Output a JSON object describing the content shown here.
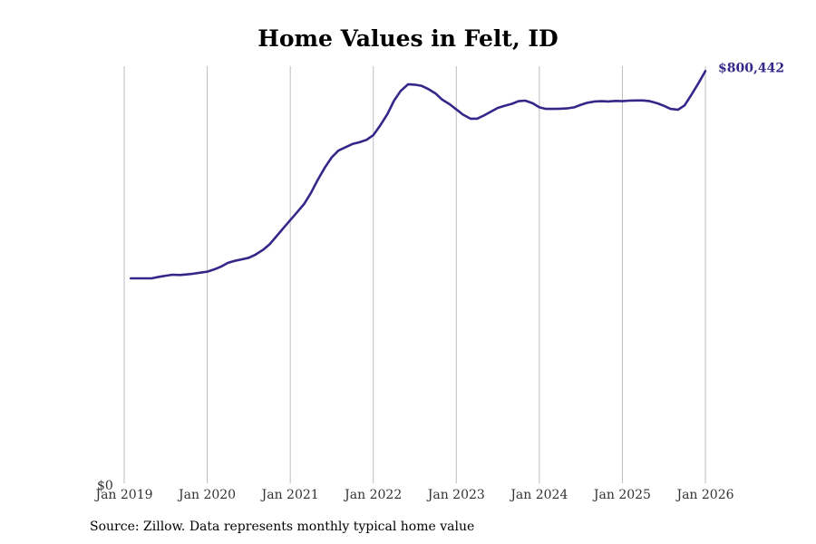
{
  "chart_data": {
    "type": "line",
    "title": "Home Values in Felt, ID",
    "xlabel": "",
    "ylabel": "",
    "y_tick_labels": [
      "$0"
    ],
    "ylim": [
      0,
      810000
    ],
    "x_ticks": [
      {
        "label": "Jan 2019",
        "value": 2019.0
      },
      {
        "label": "Jan 2020",
        "value": 2020.0
      },
      {
        "label": "Jan 2021",
        "value": 2021.0
      },
      {
        "label": "Jan 2022",
        "value": 2022.0
      },
      {
        "label": "Jan 2023",
        "value": 2023.0
      },
      {
        "label": "Jan 2024",
        "value": 2024.0
      },
      {
        "label": "Jan 2025",
        "value": 2025.0
      },
      {
        "label": "Jan 2026",
        "value": 2026.0
      }
    ],
    "xlim": [
      2019.0,
      2026.0
    ],
    "grid": "vertical",
    "end_label": "$800,442",
    "series": [
      {
        "name": "Typical home value",
        "color": "#33288a",
        "points": [
          [
            2019.08,
            398000
          ],
          [
            2019.17,
            398000
          ],
          [
            2019.25,
            398000
          ],
          [
            2019.33,
            398000
          ],
          [
            2019.42,
            401000
          ],
          [
            2019.5,
            403000
          ],
          [
            2019.58,
            405000
          ],
          [
            2019.67,
            404500
          ],
          [
            2019.75,
            405500
          ],
          [
            2019.83,
            407000
          ],
          [
            2019.92,
            409000
          ],
          [
            2020.0,
            411000
          ],
          [
            2020.08,
            415000
          ],
          [
            2020.17,
            421000
          ],
          [
            2020.25,
            428000
          ],
          [
            2020.33,
            432000
          ],
          [
            2020.42,
            435000
          ],
          [
            2020.5,
            438000
          ],
          [
            2020.58,
            444000
          ],
          [
            2020.67,
            453000
          ],
          [
            2020.75,
            464000
          ],
          [
            2020.83,
            479000
          ],
          [
            2020.92,
            496000
          ],
          [
            2021.0,
            511000
          ],
          [
            2021.08,
            526000
          ],
          [
            2021.17,
            543000
          ],
          [
            2021.25,
            564000
          ],
          [
            2021.33,
            589000
          ],
          [
            2021.42,
            614000
          ],
          [
            2021.5,
            633000
          ],
          [
            2021.58,
            646000
          ],
          [
            2021.67,
            653000
          ],
          [
            2021.75,
            659000
          ],
          [
            2021.83,
            662000
          ],
          [
            2021.92,
            667000
          ],
          [
            2022.0,
            676000
          ],
          [
            2022.08,
            694000
          ],
          [
            2022.17,
            717000
          ],
          [
            2022.25,
            743000
          ],
          [
            2022.33,
            762000
          ],
          [
            2022.42,
            775000
          ],
          [
            2022.5,
            774000
          ],
          [
            2022.58,
            772000
          ],
          [
            2022.67,
            765000
          ],
          [
            2022.75,
            757000
          ],
          [
            2022.83,
            745000
          ],
          [
            2022.92,
            736000
          ],
          [
            2023.0,
            726000
          ],
          [
            2023.08,
            716000
          ],
          [
            2023.17,
            708000
          ],
          [
            2023.25,
            708000
          ],
          [
            2023.33,
            714000
          ],
          [
            2023.42,
            722000
          ],
          [
            2023.5,
            729000
          ],
          [
            2023.58,
            733000
          ],
          [
            2023.67,
            737000
          ],
          [
            2023.75,
            742000
          ],
          [
            2023.83,
            743000
          ],
          [
            2023.92,
            738000
          ],
          [
            2024.0,
            730000
          ],
          [
            2024.08,
            727000
          ],
          [
            2024.17,
            727000
          ],
          [
            2024.25,
            727500
          ],
          [
            2024.33,
            728000
          ],
          [
            2024.42,
            730000
          ],
          [
            2024.5,
            735000
          ],
          [
            2024.58,
            739000
          ],
          [
            2024.67,
            741500
          ],
          [
            2024.75,
            742000
          ],
          [
            2024.83,
            741500
          ],
          [
            2024.92,
            742500
          ],
          [
            2025.0,
            742000
          ],
          [
            2025.08,
            743000
          ],
          [
            2025.17,
            743500
          ],
          [
            2025.25,
            743500
          ],
          [
            2025.33,
            742000
          ],
          [
            2025.42,
            738000
          ],
          [
            2025.5,
            733000
          ],
          [
            2025.58,
            727000
          ],
          [
            2025.67,
            725500
          ],
          [
            2025.75,
            734000
          ],
          [
            2025.83,
            754000
          ],
          [
            2025.92,
            778000
          ],
          [
            2026.0,
            800442
          ]
        ]
      }
    ]
  },
  "footer": {
    "source": "Source: Zillow. Data represents monthly typical home value"
  }
}
